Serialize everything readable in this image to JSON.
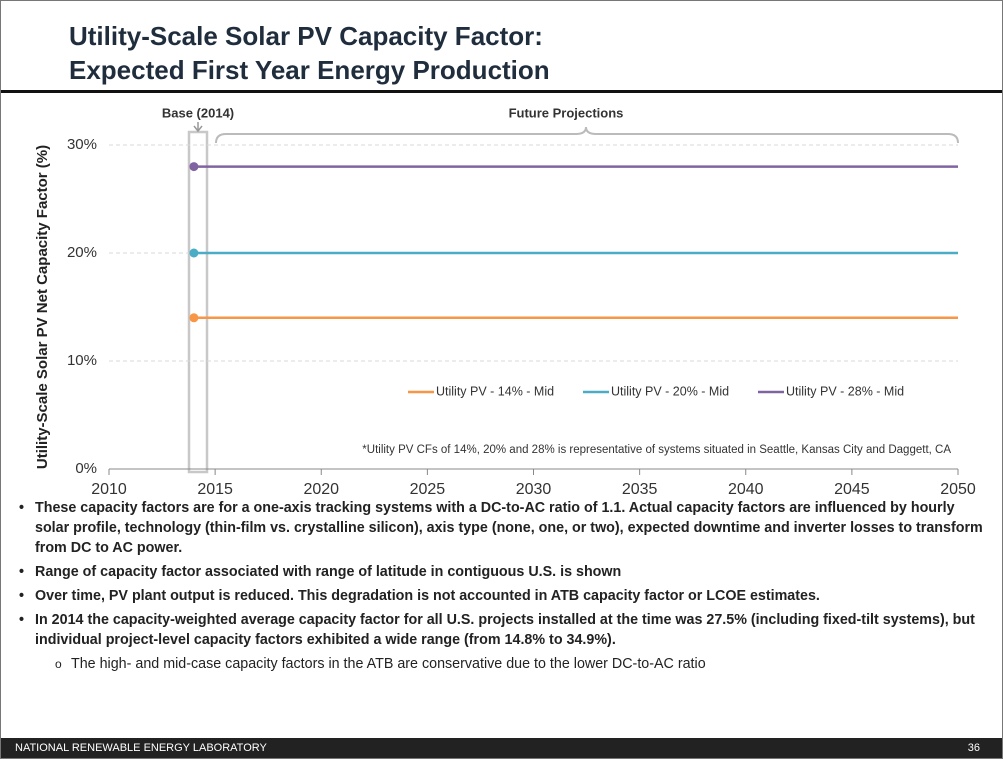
{
  "slide": {
    "title_lines": [
      "Utility-Scale Solar PV Capacity Factor:",
      "Expected First Year Energy Production"
    ],
    "bullets": [
      "These capacity factors are for a one-axis tracking systems with a DC-to-AC ratio of 1.1.  Actual capacity factors are influenced by hourly solar profile, technology (thin-film vs. crystalline silicon), axis type (none, one, or two), expected downtime and inverter losses to transform from DC to AC power.",
      "Range of capacity factor associated with range of latitude in contiguous U.S. is shown",
      "Over time, PV plant output is reduced.  This degradation is not accounted in ATB capacity factor  or LCOE estimates.",
      "In 2014 the capacity-weighted average capacity factor for all U.S. projects installed at the time was 27.5% (including fixed-tilt systems), but individual project-level capacity factors exhibited a wide range (from 14.8% to 34.9%)."
    ],
    "sub_bullet": "The high- and mid-case capacity factors in the ATB are conservative due to the lower DC-to-AC ratio",
    "footer": "NATIONAL RENEWABLE ENERGY LABORATORY",
    "page_number": "36"
  },
  "chart_data": {
    "type": "line",
    "y_label": "Utility-Scale Solar PV Net Capacity Factor (%)",
    "annotations": [
      "Base (2014)",
      "Future Projections",
      "*Utility PV CFs of 14%, 20% and 28% is representative of systems situated in Seattle, Kansas City and Daggett, CA"
    ],
    "x": [
      2014,
      2015,
      2016,
      2017,
      2018,
      2019,
      2020,
      2021,
      2022,
      2023,
      2024,
      2025,
      2026,
      2027,
      2028,
      2029,
      2030,
      2031,
      2032,
      2033,
      2034,
      2035,
      2036,
      2037,
      2038,
      2039,
      2040,
      2041,
      2042,
      2043,
      2044,
      2045,
      2046,
      2047,
      2048,
      2049,
      2050
    ],
    "series": [
      {
        "name": "Utility PV - 14% - Mid",
        "color": "#f79646",
        "values": [
          14,
          14,
          14,
          14,
          14,
          14,
          14,
          14,
          14,
          14,
          14,
          14,
          14,
          14,
          14,
          14,
          14,
          14,
          14,
          14,
          14,
          14,
          14,
          14,
          14,
          14,
          14,
          14,
          14,
          14,
          14,
          14,
          14,
          14,
          14,
          14,
          14
        ]
      },
      {
        "name": "Utility PV - 20% - Mid",
        "color": "#4bacc6",
        "values": [
          20,
          20,
          20,
          20,
          20,
          20,
          20,
          20,
          20,
          20,
          20,
          20,
          20,
          20,
          20,
          20,
          20,
          20,
          20,
          20,
          20,
          20,
          20,
          20,
          20,
          20,
          20,
          20,
          20,
          20,
          20,
          20,
          20,
          20,
          20,
          20,
          20
        ]
      },
      {
        "name": "Utility PV - 28% - Mid",
        "color": "#8064a2",
        "values": [
          28,
          28,
          28,
          28,
          28,
          28,
          28,
          28,
          28,
          28,
          28,
          28,
          28,
          28,
          28,
          28,
          28,
          28,
          28,
          28,
          28,
          28,
          28,
          28,
          28,
          28,
          28,
          28,
          28,
          28,
          28,
          28,
          28,
          28,
          28,
          28,
          28
        ]
      }
    ],
    "xlim": [
      2010,
      2050
    ],
    "xticks": [
      2010,
      2015,
      2020,
      2025,
      2030,
      2035,
      2040,
      2045,
      2050
    ],
    "ylim": [
      0,
      30
    ],
    "yticks": [
      {
        "value": 0,
        "label": "0%"
      },
      {
        "value": 10,
        "label": "10%"
      },
      {
        "value": 20,
        "label": "20%"
      },
      {
        "value": 30,
        "label": "30%"
      }
    ],
    "grid": true,
    "legend": "bottom-right"
  }
}
